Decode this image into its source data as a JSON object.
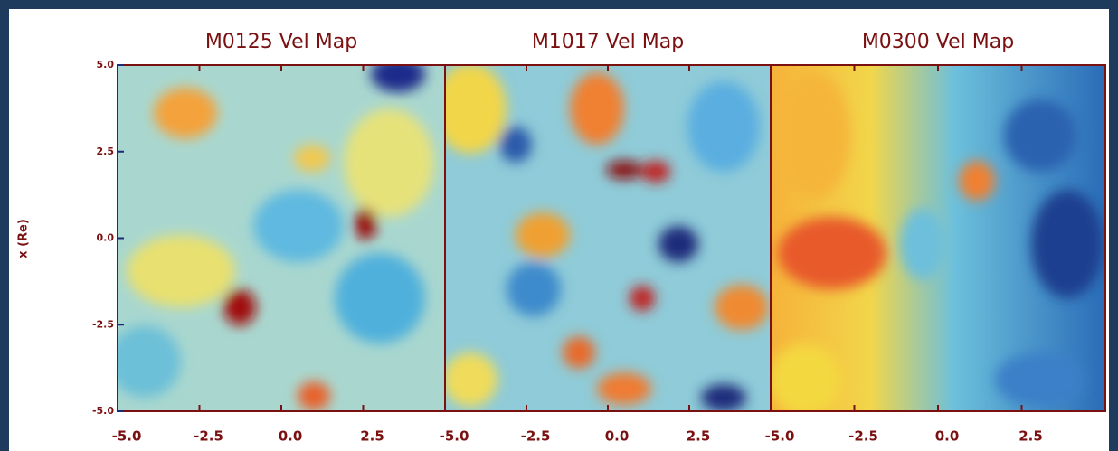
{
  "chart_data": [
    {
      "type": "heatmap",
      "title": "M0125 Vel Map",
      "ylabel": "x (Re)",
      "xlim": [
        -5,
        5
      ],
      "xticks": [
        {
          "value": -5,
          "label": "-5.0"
        },
        {
          "value": -2.5,
          "label": "-2.5"
        },
        {
          "value": 0,
          "label": "0.0"
        },
        {
          "value": 2.5,
          "label": "2.5"
        }
      ],
      "ylim": [
        -5,
        5
      ],
      "yticks": [
        {
          "value": 5,
          "label": "5.0"
        },
        {
          "value": 2.5,
          "label": "2.5"
        },
        {
          "value": 0,
          "label": "0.0"
        },
        {
          "value": -2.5,
          "label": "-2.5"
        },
        {
          "value": -5,
          "label": "-5.0"
        }
      ]
    },
    {
      "type": "heatmap",
      "title": "M1017 Vel Map",
      "xlim": [
        -5,
        5
      ],
      "xticks": [
        {
          "value": -5,
          "label": "-5.0"
        },
        {
          "value": -2.5,
          "label": "-2.5"
        },
        {
          "value": 0,
          "label": "0.0"
        },
        {
          "value": 2.5,
          "label": "2.5"
        }
      ],
      "ylim": [
        -5,
        5
      ]
    },
    {
      "type": "heatmap",
      "title": "M0300 Vel Map",
      "xlim": [
        -5,
        5
      ],
      "xticks": [
        {
          "value": -5,
          "label": "-5.0"
        },
        {
          "value": -2.5,
          "label": "-2.5"
        },
        {
          "value": 0,
          "label": "0.0"
        },
        {
          "value": 2.5,
          "label": "2.5"
        }
      ],
      "ylim": [
        -5,
        5
      ]
    }
  ]
}
